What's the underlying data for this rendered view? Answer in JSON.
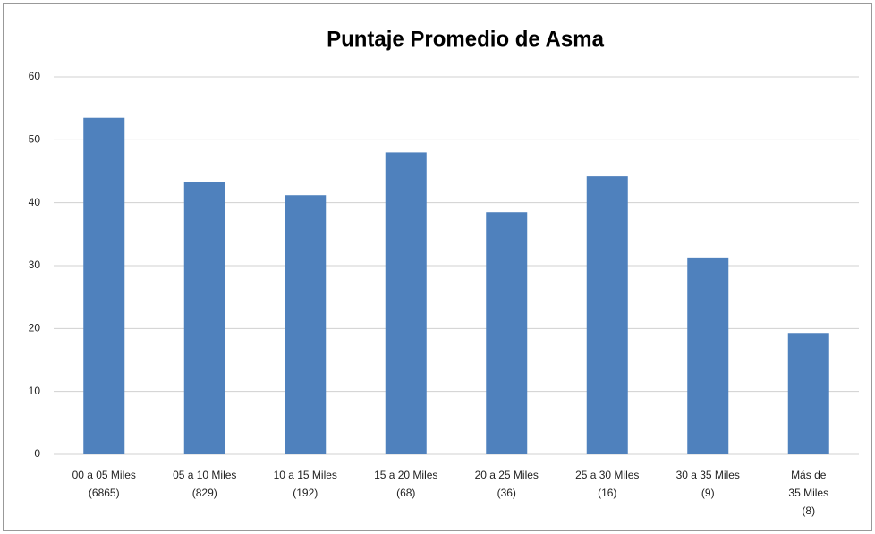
{
  "chart_data": {
    "type": "bar",
    "title": "Puntaje Promedio de Asma",
    "categories": [
      [
        "00 a 05 Miles",
        "(6865)"
      ],
      [
        "05 a 10 Miles",
        "(829)"
      ],
      [
        "10 a 15 Miles",
        "(192)"
      ],
      [
        "15 a 20 Miles",
        "(68)"
      ],
      [
        "20 a 25 Miles",
        "(36)"
      ],
      [
        "25 a 30 Miles",
        "(16)"
      ],
      [
        "30 a 35 Miles",
        "(9)"
      ],
      [
        "Más de",
        "35 Miles",
        "(8)"
      ]
    ],
    "values": [
      53.5,
      43.3,
      41.2,
      48,
      38.5,
      44.2,
      31.3,
      19.3
    ],
    "color": "#4f81bd",
    "ylim": [
      0,
      60
    ],
    "yticks": [
      0,
      10,
      20,
      30,
      40,
      50,
      60
    ],
    "grid": true
  }
}
